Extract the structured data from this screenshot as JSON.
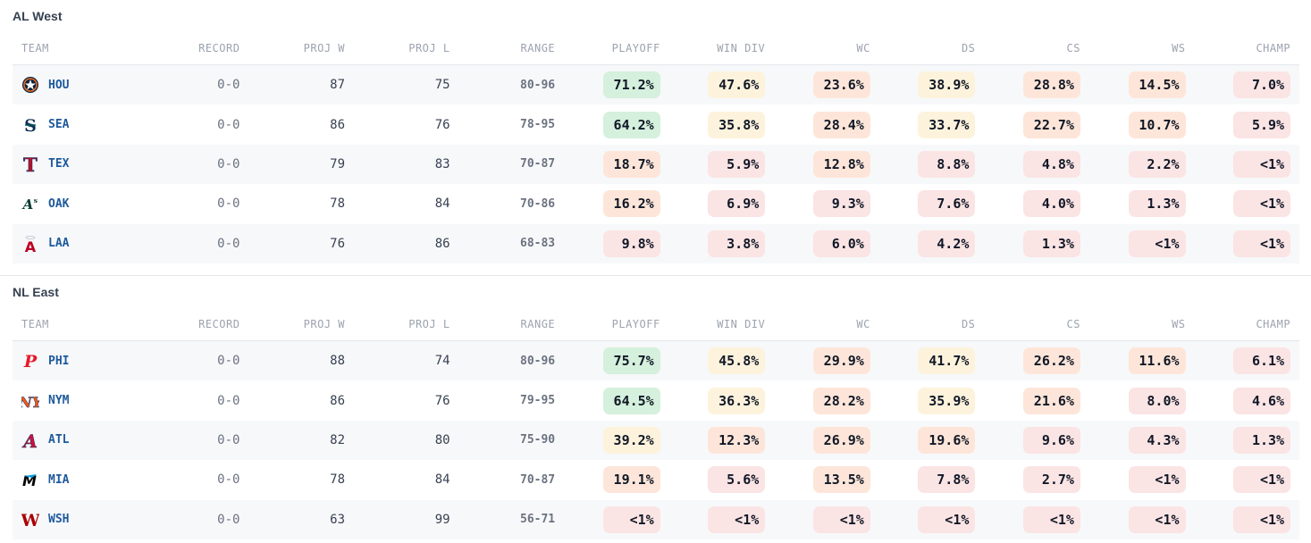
{
  "colors": {
    "green": "#d5f0dc",
    "yellow": "#fdf3dc",
    "orange": "#fde6d9",
    "red": "#fbe4e4",
    "team_text": "#1e5a9c"
  },
  "columns": [
    "TEAM",
    "RECORD",
    "PROJ W",
    "PROJ L",
    "RANGE",
    "PLAYOFF",
    "WIN DIV",
    "WC",
    "DS",
    "CS",
    "WS",
    "CHAMP"
  ],
  "divisions": [
    {
      "title": "AL West",
      "teams": [
        {
          "abbr": "HOU",
          "logo": "astros-icon",
          "record": "0-0",
          "proj_w": "87",
          "proj_l": "75",
          "range": "80-96",
          "odds": [
            "71.2%",
            "47.6%",
            "23.6%",
            "38.9%",
            "28.8%",
            "14.5%",
            "7.0%"
          ],
          "tiers": [
            "green",
            "yellow",
            "orange",
            "yellow",
            "orange",
            "orange",
            "red"
          ]
        },
        {
          "abbr": "SEA",
          "logo": "mariners-icon",
          "record": "0-0",
          "proj_w": "86",
          "proj_l": "76",
          "range": "78-95",
          "odds": [
            "64.2%",
            "35.8%",
            "28.4%",
            "33.7%",
            "22.7%",
            "10.7%",
            "5.9%"
          ],
          "tiers": [
            "green",
            "yellow",
            "orange",
            "yellow",
            "orange",
            "orange",
            "red"
          ]
        },
        {
          "abbr": "TEX",
          "logo": "rangers-icon",
          "record": "0-0",
          "proj_w": "79",
          "proj_l": "83",
          "range": "70-87",
          "odds": [
            "18.7%",
            "5.9%",
            "12.8%",
            "8.8%",
            "4.8%",
            "2.2%",
            "<1%"
          ],
          "tiers": [
            "orange",
            "red",
            "orange",
            "red",
            "red",
            "red",
            "red"
          ]
        },
        {
          "abbr": "OAK",
          "logo": "athletics-icon",
          "record": "0-0",
          "proj_w": "78",
          "proj_l": "84",
          "range": "70-86",
          "odds": [
            "16.2%",
            "6.9%",
            "9.3%",
            "7.6%",
            "4.0%",
            "1.3%",
            "<1%"
          ],
          "tiers": [
            "orange",
            "red",
            "red",
            "red",
            "red",
            "red",
            "red"
          ]
        },
        {
          "abbr": "LAA",
          "logo": "angels-icon",
          "record": "0-0",
          "proj_w": "76",
          "proj_l": "86",
          "range": "68-83",
          "odds": [
            "9.8%",
            "3.8%",
            "6.0%",
            "4.2%",
            "1.3%",
            "<1%",
            "<1%"
          ],
          "tiers": [
            "red",
            "red",
            "red",
            "red",
            "red",
            "red",
            "red"
          ]
        }
      ]
    },
    {
      "title": "NL East",
      "teams": [
        {
          "abbr": "PHI",
          "logo": "phillies-icon",
          "record": "0-0",
          "proj_w": "88",
          "proj_l": "74",
          "range": "80-96",
          "odds": [
            "75.7%",
            "45.8%",
            "29.9%",
            "41.7%",
            "26.2%",
            "11.6%",
            "6.1%"
          ],
          "tiers": [
            "green",
            "yellow",
            "orange",
            "yellow",
            "orange",
            "orange",
            "red"
          ]
        },
        {
          "abbr": "NYM",
          "logo": "mets-icon",
          "record": "0-0",
          "proj_w": "86",
          "proj_l": "76",
          "range": "79-95",
          "odds": [
            "64.5%",
            "36.3%",
            "28.2%",
            "35.9%",
            "21.6%",
            "8.0%",
            "4.6%"
          ],
          "tiers": [
            "green",
            "yellow",
            "orange",
            "yellow",
            "orange",
            "red",
            "red"
          ]
        },
        {
          "abbr": "ATL",
          "logo": "braves-icon",
          "record": "0-0",
          "proj_w": "82",
          "proj_l": "80",
          "range": "75-90",
          "odds": [
            "39.2%",
            "12.3%",
            "26.9%",
            "19.6%",
            "9.6%",
            "4.3%",
            "1.3%"
          ],
          "tiers": [
            "yellow",
            "orange",
            "orange",
            "orange",
            "red",
            "red",
            "red"
          ]
        },
        {
          "abbr": "MIA",
          "logo": "marlins-icon",
          "record": "0-0",
          "proj_w": "78",
          "proj_l": "84",
          "range": "70-87",
          "odds": [
            "19.1%",
            "5.6%",
            "13.5%",
            "7.8%",
            "2.7%",
            "<1%",
            "<1%"
          ],
          "tiers": [
            "orange",
            "red",
            "orange",
            "red",
            "red",
            "red",
            "red"
          ]
        },
        {
          "abbr": "WSH",
          "logo": "nationals-icon",
          "record": "0-0",
          "proj_w": "63",
          "proj_l": "99",
          "range": "56-71",
          "odds": [
            "<1%",
            "<1%",
            "<1%",
            "<1%",
            "<1%",
            "<1%",
            "<1%"
          ],
          "tiers": [
            "red",
            "red",
            "red",
            "red",
            "red",
            "red",
            "red"
          ]
        }
      ]
    }
  ]
}
